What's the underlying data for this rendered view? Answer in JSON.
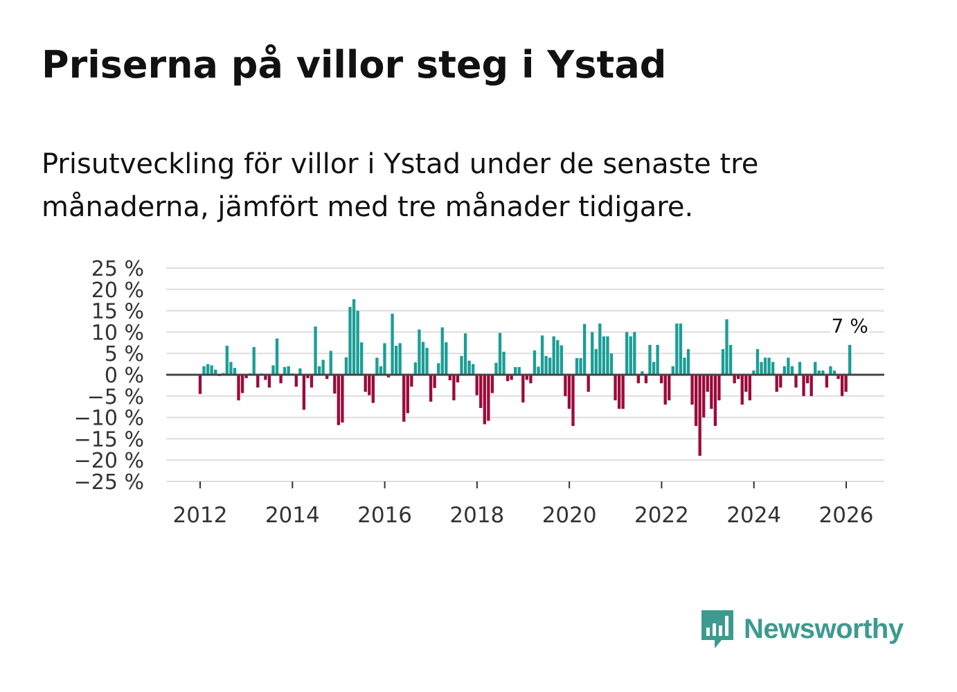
{
  "title": "Priserna på villor steg i Ystad",
  "subtitle": "Prisutveckling för villor i Ystad under de senaste tre månaderna, jämfört med tre månader tidigare.",
  "logo": {
    "text": "Newsworthy",
    "icon": "bar-chart-speech-bubble-icon"
  },
  "colors": {
    "positive": "#1a9e96",
    "negative": "#9b0a3a",
    "grid": "#dddddd",
    "zero": "#444444",
    "text": "#111111",
    "brand": "#3d9a8f"
  },
  "chart_data": {
    "type": "bar",
    "title": "Priserna på villor steg i Ystad",
    "xlabel": "",
    "ylabel": "",
    "ylim": [
      -25,
      25
    ],
    "ytick_values": [
      25,
      20,
      15,
      10,
      5,
      0,
      -5,
      -10,
      -15,
      -20,
      -25
    ],
    "ytick_labels": [
      "25 %",
      "20 %",
      "15 %",
      "10 %",
      "5 %",
      "0 %",
      "−5 %",
      "−10 %",
      "−15 %",
      "−20 %",
      "−25 %"
    ],
    "xtick_values": [
      2012,
      2014,
      2016,
      2018,
      2020,
      2022,
      2024,
      2026
    ],
    "xtick_labels": [
      "2012",
      "2014",
      "2016",
      "2018",
      "2020",
      "2022",
      "2024",
      "2026"
    ],
    "x_start": 2012.0,
    "x_step": 0.0833,
    "unit": "%",
    "annotation": {
      "label": "7 %",
      "value": 7
    },
    "values": [
      -4.5,
      2.0,
      2.5,
      2.2,
      1.2,
      -0.3,
      0.4,
      6.8,
      3.0,
      1.6,
      -6.0,
      -4.3,
      -0.8,
      0.3,
      6.5,
      -3.0,
      0.3,
      -1.2,
      -3.0,
      2.2,
      8.5,
      -2.0,
      1.8,
      2.0,
      0.3,
      -2.8,
      1.5,
      -8.2,
      -0.8,
      -3.0,
      11.3,
      2.0,
      3.5,
      -1.0,
      5.6,
      -4.4,
      -11.8,
      -11.2,
      4.1,
      15.9,
      17.7,
      15.0,
      7.6,
      -4.0,
      -4.8,
      -6.6,
      4.0,
      2.0,
      7.4,
      -0.6,
      14.3,
      6.8,
      7.4,
      -11.0,
      -9.0,
      -2.8,
      2.9,
      10.6,
      7.7,
      6.3,
      -6.3,
      -3.1,
      2.7,
      11.1,
      7.6,
      -1.3,
      -6.0,
      -1.8,
      4.4,
      9.7,
      3.3,
      2.5,
      -4.8,
      -7.8,
      -11.6,
      -10.8,
      -4.3,
      2.8,
      9.8,
      5.4,
      -1.5,
      -1.2,
      1.8,
      1.8,
      -6.5,
      -1.2,
      -2.0,
      5.7,
      1.9,
      9.2,
      4.4,
      4.0,
      9.0,
      8.1,
      6.9,
      -5.0,
      -8.0,
      -12.0,
      3.9,
      3.9,
      11.9,
      -4.0,
      10.0,
      6.0,
      12.0,
      9.0,
      9.0,
      5.0,
      -6.0,
      -8.0,
      -8.0,
      10.0,
      9.0,
      10.0,
      -2.0,
      0.8,
      -2.0,
      7.0,
      3.0,
      7.0,
      -2.0,
      -7.0,
      -6.0,
      2.0,
      12.0,
      12.0,
      4.0,
      6.0,
      -7.0,
      -12.0,
      -19.0,
      -10.0,
      -4.0,
      -8.0,
      -12.0,
      -6.0,
      6.0,
      13.0,
      7.0,
      -2.0,
      -1.0,
      -7.0,
      -4.0,
      -6.0,
      1.0,
      6.0,
      3.0,
      4.0,
      4.0,
      3.0,
      -4.0,
      -3.0,
      2.0,
      4.0,
      2.0,
      -3.0,
      3.0,
      -5.0,
      -2.0,
      -5.0,
      3.0,
      1.0,
      1.0,
      -3.0,
      2.0,
      1.0,
      -1.0,
      -5.0,
      -4.0,
      7.0
    ]
  }
}
